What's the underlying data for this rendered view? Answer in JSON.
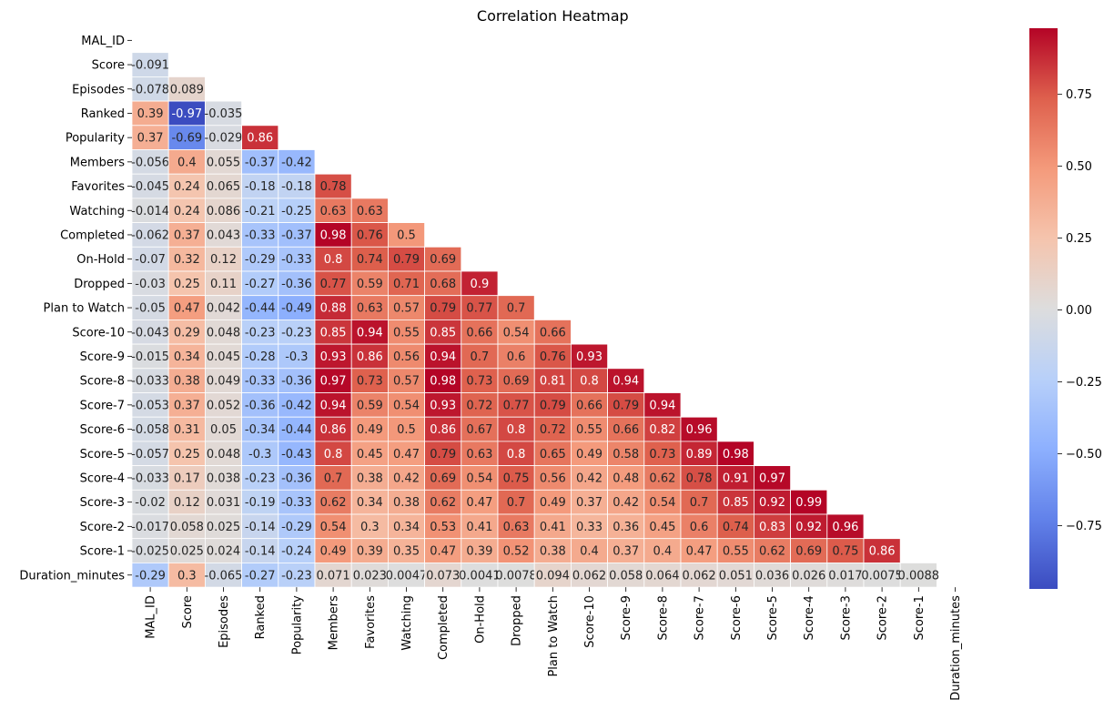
{
  "chart_data": {
    "type": "heatmap",
    "title": "Correlation Heatmap",
    "xlabel": "",
    "ylabel": "",
    "mask": "upper-triangle-including-diagonal",
    "colormap": "coolwarm",
    "vmin": -0.97,
    "vmax": 0.98,
    "colorbar_ticks": [
      "0.75",
      "0.50",
      "0.25",
      "0.00",
      "−0.25",
      "−0.50",
      "−0.75"
    ],
    "colorbar_tick_values": [
      0.75,
      0.5,
      0.25,
      0,
      -0.25,
      -0.5,
      -0.75
    ],
    "labels": [
      "MAL_ID",
      "Score",
      "Episodes",
      "Ranked",
      "Popularity",
      "Members",
      "Favorites",
      "Watching",
      "Completed",
      "On-Hold",
      "Dropped",
      "Plan to Watch",
      "Score-10",
      "Score-9",
      "Score-8",
      "Score-7",
      "Score-6",
      "Score-5",
      "Score-4",
      "Score-3",
      "Score-2",
      "Score-1",
      "Duration_minutes"
    ],
    "rows": [
      [],
      [
        "-0.091"
      ],
      [
        "-0.078",
        "0.089"
      ],
      [
        "0.39",
        "-0.97",
        "-0.035"
      ],
      [
        "0.37",
        "-0.69",
        "-0.029",
        "0.86"
      ],
      [
        "-0.056",
        "0.4",
        "0.055",
        "-0.37",
        "-0.42"
      ],
      [
        "-0.045",
        "0.24",
        "0.065",
        "-0.18",
        "-0.18",
        "0.78"
      ],
      [
        "-0.014",
        "0.24",
        "0.086",
        "-0.21",
        "-0.25",
        "0.63",
        "0.63"
      ],
      [
        "-0.062",
        "0.37",
        "0.043",
        "-0.33",
        "-0.37",
        "0.98",
        "0.76",
        "0.5"
      ],
      [
        "-0.07",
        "0.32",
        "0.12",
        "-0.29",
        "-0.33",
        "0.8",
        "0.74",
        "0.79",
        "0.69"
      ],
      [
        "-0.03",
        "0.25",
        "0.11",
        "-0.27",
        "-0.36",
        "0.77",
        "0.59",
        "0.71",
        "0.68",
        "0.9"
      ],
      [
        "-0.05",
        "0.47",
        "0.042",
        "-0.44",
        "-0.49",
        "0.88",
        "0.63",
        "0.57",
        "0.79",
        "0.77",
        "0.7"
      ],
      [
        "-0.043",
        "0.29",
        "0.048",
        "-0.23",
        "-0.23",
        "0.85",
        "0.94",
        "0.55",
        "0.85",
        "0.66",
        "0.54",
        "0.66"
      ],
      [
        "-0.015",
        "0.34",
        "0.045",
        "-0.28",
        "-0.3",
        "0.93",
        "0.86",
        "0.56",
        "0.94",
        "0.7",
        "0.6",
        "0.76",
        "0.93"
      ],
      [
        "-0.033",
        "0.38",
        "0.049",
        "-0.33",
        "-0.36",
        "0.97",
        "0.73",
        "0.57",
        "0.98",
        "0.73",
        "0.69",
        "0.81",
        "0.8",
        "0.94"
      ],
      [
        "-0.053",
        "0.37",
        "0.052",
        "-0.36",
        "-0.42",
        "0.94",
        "0.59",
        "0.54",
        "0.93",
        "0.72",
        "0.77",
        "0.79",
        "0.66",
        "0.79",
        "0.94"
      ],
      [
        "-0.058",
        "0.31",
        "0.05",
        "-0.34",
        "-0.44",
        "0.86",
        "0.49",
        "0.5",
        "0.86",
        "0.67",
        "0.8",
        "0.72",
        "0.55",
        "0.66",
        "0.82",
        "0.96"
      ],
      [
        "-0.057",
        "0.25",
        "0.048",
        "-0.3",
        "-0.43",
        "0.8",
        "0.45",
        "0.47",
        "0.79",
        "0.63",
        "0.8",
        "0.65",
        "0.49",
        "0.58",
        "0.73",
        "0.89",
        "0.98"
      ],
      [
        "-0.033",
        "0.17",
        "0.038",
        "-0.23",
        "-0.36",
        "0.7",
        "0.38",
        "0.42",
        "0.69",
        "0.54",
        "0.75",
        "0.56",
        "0.42",
        "0.48",
        "0.62",
        "0.78",
        "0.91",
        "0.97"
      ],
      [
        "-0.02",
        "0.12",
        "0.031",
        "-0.19",
        "-0.33",
        "0.62",
        "0.34",
        "0.38",
        "0.62",
        "0.47",
        "0.7",
        "0.49",
        "0.37",
        "0.42",
        "0.54",
        "0.7",
        "0.85",
        "0.92",
        "0.99"
      ],
      [
        "-0.017",
        "0.058",
        "0.025",
        "-0.14",
        "-0.29",
        "0.54",
        "0.3",
        "0.34",
        "0.53",
        "0.41",
        "0.63",
        "0.41",
        "0.33",
        "0.36",
        "0.45",
        "0.6",
        "0.74",
        "0.83",
        "0.92",
        "0.96"
      ],
      [
        "-0.025",
        "0.025",
        "0.024",
        "-0.14",
        "-0.24",
        "0.49",
        "0.39",
        "0.35",
        "0.47",
        "0.39",
        "0.52",
        "0.38",
        "0.4",
        "0.37",
        "0.4",
        "0.47",
        "0.55",
        "0.62",
        "0.69",
        "0.75",
        "0.86"
      ],
      [
        "-0.29",
        "0.3",
        "-0.065",
        "-0.27",
        "-0.23",
        "0.071",
        "0.023",
        "0.0047",
        "0.073",
        "0.0041",
        "0.0078",
        "0.094",
        "0.062",
        "0.058",
        "0.064",
        "0.062",
        "0.051",
        "0.036",
        "0.026",
        "0.017",
        "0.0075",
        "0.0088"
      ]
    ]
  }
}
